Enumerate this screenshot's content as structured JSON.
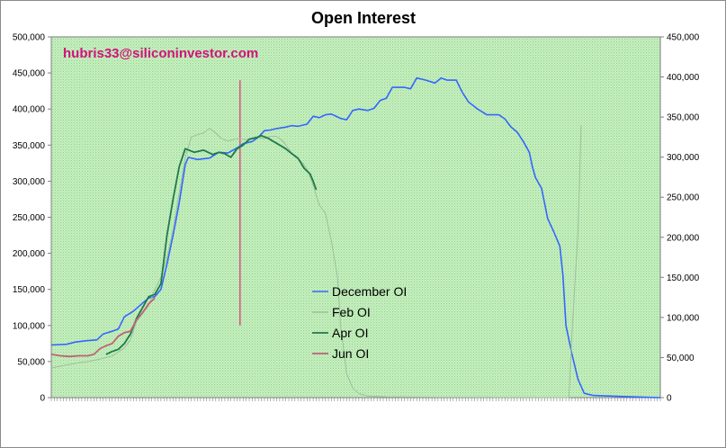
{
  "chart_data": {
    "type": "line",
    "title": "Open Interest",
    "annotation": "hubris33@siliconinvestor.com",
    "grid": false,
    "legend_position": "center",
    "x_count": 160,
    "y_left": {
      "min": 0,
      "max": 500000,
      "step": 50000,
      "tick_labels": [
        "0",
        "50,000",
        "100,000",
        "150,000",
        "200,000",
        "250,000",
        "300,000",
        "350,000",
        "400,000",
        "450,000",
        "500,000"
      ]
    },
    "y_right": {
      "min": 0,
      "max": 450000,
      "step": 50000,
      "tick_labels": [
        "0",
        "50,000",
        "100,000",
        "150,000",
        "200,000",
        "250,000",
        "300,000",
        "350,000",
        "400,000",
        "450,000"
      ]
    },
    "vertical_marker": {
      "x": 62,
      "y_from": 100000,
      "y_to": 440000,
      "color": "#e8006e"
    },
    "series": [
      {
        "name": "December OI",
        "axis": "left",
        "color": "#3366ff",
        "width": 1.6,
        "points": [
          [
            0,
            73000
          ],
          [
            5,
            74000
          ],
          [
            8,
            77000
          ],
          [
            12,
            79000
          ],
          [
            15,
            80000
          ],
          [
            17,
            88000
          ],
          [
            20,
            92000
          ],
          [
            22,
            95000
          ],
          [
            24,
            112000
          ],
          [
            27,
            120000
          ],
          [
            30,
            131000
          ],
          [
            32,
            138000
          ],
          [
            34,
            140000
          ],
          [
            36,
            150000
          ],
          [
            38,
            185000
          ],
          [
            40,
            225000
          ],
          [
            42,
            270000
          ],
          [
            44,
            323000
          ],
          [
            45,
            333000
          ],
          [
            48,
            330000
          ],
          [
            52,
            332000
          ],
          [
            55,
            340000
          ],
          [
            58,
            339000
          ],
          [
            61,
            346000
          ],
          [
            63,
            352000
          ],
          [
            66,
            355000
          ],
          [
            68,
            361000
          ],
          [
            70,
            370000
          ],
          [
            72,
            371000
          ],
          [
            74,
            373000
          ],
          [
            77,
            375000
          ],
          [
            79,
            377000
          ],
          [
            81,
            376000
          ],
          [
            84,
            379000
          ],
          [
            86,
            390000
          ],
          [
            88,
            388000
          ],
          [
            90,
            392000
          ],
          [
            92,
            393000
          ],
          [
            95,
            387000
          ],
          [
            97,
            385000
          ],
          [
            99,
            398000
          ],
          [
            101,
            400000
          ],
          [
            104,
            398000
          ],
          [
            106,
            401000
          ],
          [
            108,
            412000
          ],
          [
            110,
            415000
          ],
          [
            112,
            430000
          ],
          [
            116,
            430000
          ],
          [
            118,
            428000
          ],
          [
            120,
            443000
          ],
          [
            123,
            440000
          ],
          [
            126,
            436000
          ],
          [
            128,
            443000
          ],
          [
            130,
            440000
          ],
          [
            133,
            440000
          ],
          [
            135,
            423000
          ],
          [
            137,
            410000
          ],
          [
            140,
            400000
          ],
          [
            143,
            392000
          ],
          [
            147,
            392000
          ],
          [
            149,
            386000
          ],
          [
            151,
            375000
          ],
          [
            153,
            368000
          ],
          [
            155,
            355000
          ],
          [
            157,
            340000
          ],
          [
            158,
            320000
          ],
          [
            159,
            305000
          ],
          [
            161,
            290000
          ],
          [
            163,
            248000
          ],
          [
            165,
            230000
          ],
          [
            167,
            210000
          ],
          [
            168,
            170000
          ],
          [
            169,
            100000
          ],
          [
            171,
            60000
          ],
          [
            173,
            25000
          ],
          [
            175,
            6000
          ],
          [
            178,
            3000
          ],
          [
            185,
            2000
          ],
          [
            195,
            500
          ],
          [
            200,
            0
          ]
        ]
      },
      {
        "name": "Feb OI",
        "axis": "right",
        "color": "#9dbf9d",
        "width": 1.0,
        "points": [
          [
            0,
            37000
          ],
          [
            4,
            40000
          ],
          [
            8,
            43000
          ],
          [
            12,
            45000
          ],
          [
            16,
            48000
          ],
          [
            20,
            52000
          ],
          [
            24,
            62000
          ],
          [
            26,
            72000
          ],
          [
            28,
            95000
          ],
          [
            30,
            105000
          ],
          [
            32,
            115000
          ],
          [
            34,
            135000
          ],
          [
            36,
            150000
          ],
          [
            38,
            175000
          ],
          [
            40,
            210000
          ],
          [
            42,
            255000
          ],
          [
            44,
            300000
          ],
          [
            46,
            325000
          ],
          [
            48,
            328000
          ],
          [
            50,
            330000
          ],
          [
            52,
            336000
          ],
          [
            54,
            330000
          ],
          [
            56,
            323000
          ],
          [
            58,
            320000
          ],
          [
            61,
            323000
          ],
          [
            64,
            322000
          ],
          [
            67,
            325000
          ],
          [
            70,
            323000
          ],
          [
            72,
            326000
          ],
          [
            74,
            326000
          ],
          [
            76,
            320000
          ],
          [
            78,
            310000
          ],
          [
            80,
            300000
          ],
          [
            82,
            295000
          ],
          [
            84,
            285000
          ],
          [
            86,
            265000
          ],
          [
            88,
            240000
          ],
          [
            90,
            230000
          ],
          [
            92,
            195000
          ],
          [
            94,
            150000
          ],
          [
            95,
            90000
          ],
          [
            96,
            60000
          ],
          [
            97,
            30000
          ],
          [
            99,
            12000
          ],
          [
            101,
            5000
          ],
          [
            104,
            2000
          ],
          [
            110,
            1000
          ],
          [
            130,
            500
          ],
          [
            168,
            0
          ],
          [
            170,
            0
          ],
          [
            171,
            80000
          ],
          [
            173,
            210000
          ],
          [
            174,
            340000
          ]
        ]
      },
      {
        "name": "Apr OI",
        "axis": "left",
        "color": "#1f7a4a",
        "width": 1.8,
        "points": [
          [
            18,
            60000
          ],
          [
            20,
            64000
          ],
          [
            22,
            67000
          ],
          [
            24,
            75000
          ],
          [
            26,
            88000
          ],
          [
            28,
            110000
          ],
          [
            30,
            125000
          ],
          [
            32,
            140000
          ],
          [
            34,
            143000
          ],
          [
            36,
            158000
          ],
          [
            38,
            225000
          ],
          [
            40,
            275000
          ],
          [
            42,
            320000
          ],
          [
            44,
            345000
          ],
          [
            47,
            340000
          ],
          [
            50,
            343000
          ],
          [
            53,
            337000
          ],
          [
            55,
            340000
          ],
          [
            57,
            338000
          ],
          [
            59,
            333000
          ],
          [
            61,
            345000
          ],
          [
            63,
            350000
          ],
          [
            65,
            358000
          ],
          [
            67,
            360000
          ],
          [
            69,
            363000
          ],
          [
            71,
            360000
          ],
          [
            73,
            355000
          ],
          [
            75,
            350000
          ],
          [
            77,
            345000
          ],
          [
            79,
            338000
          ],
          [
            81,
            332000
          ],
          [
            83,
            318000
          ],
          [
            85,
            310000
          ],
          [
            86,
            300000
          ],
          [
            87,
            288000
          ]
        ]
      },
      {
        "name": "Jun OI",
        "axis": "left",
        "color": "#c0607a",
        "width": 1.8,
        "points": [
          [
            0,
            60000
          ],
          [
            3,
            58000
          ],
          [
            6,
            57000
          ],
          [
            9,
            58000
          ],
          [
            12,
            58000
          ],
          [
            14,
            60000
          ],
          [
            16,
            68000
          ],
          [
            18,
            72000
          ],
          [
            20,
            75000
          ],
          [
            22,
            85000
          ],
          [
            24,
            90000
          ],
          [
            26,
            92000
          ],
          [
            28,
            108000
          ],
          [
            30,
            118000
          ],
          [
            32,
            130000
          ],
          [
            34,
            138000
          ]
        ]
      }
    ]
  }
}
